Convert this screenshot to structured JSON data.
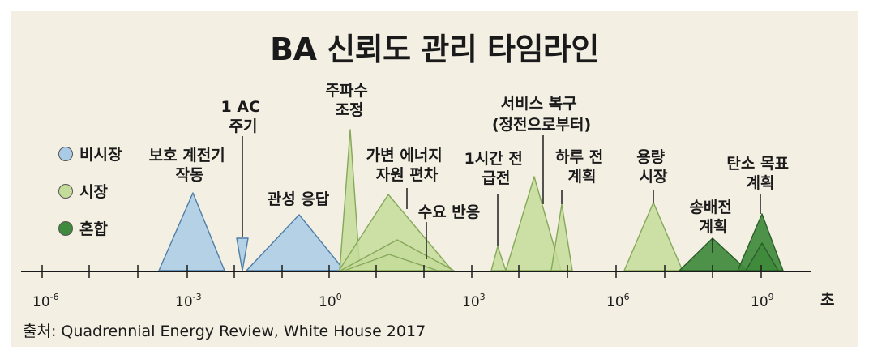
{
  "title": "BA 신뢰도 관리 타임라인",
  "source": "출처: Quadrennial Energy Review, White House 2017",
  "legend": [
    {
      "label": "비시장",
      "color": "#a9cbe6"
    },
    {
      "label": "시장",
      "color": "#c4dc9a"
    },
    {
      "label": "혼합",
      "color": "#3f8a3c"
    }
  ],
  "axis": {
    "unit": "초",
    "major_ticks": [
      {
        "base": "10",
        "exp": "-6"
      },
      {
        "base": "10",
        "exp": "-3"
      },
      {
        "base": "10",
        "exp": "0"
      },
      {
        "base": "10",
        "exp": "3"
      },
      {
        "base": "10",
        "exp": "6"
      },
      {
        "base": "10",
        "exp": "9"
      }
    ]
  },
  "items": [
    {
      "id": "protection-relay",
      "lines": [
        "보호 계전기",
        "작동"
      ],
      "type": "비시장"
    },
    {
      "id": "ac-cycle",
      "lines": [
        "1 AC",
        "주기"
      ],
      "type": "비시장"
    },
    {
      "id": "inertial-response",
      "lines": [
        "관성 응답"
      ],
      "type": "비시장"
    },
    {
      "id": "frequency-regulation",
      "lines": [
        "주파수",
        "조정"
      ],
      "type": "시장"
    },
    {
      "id": "variable-energy-deviation",
      "lines": [
        "가변 에너지",
        "자원 편차"
      ],
      "type": "시장"
    },
    {
      "id": "demand-response",
      "lines": [
        "수요 반응"
      ],
      "type": "시장"
    },
    {
      "id": "hourly-dispatch",
      "lines": [
        "1시간 전",
        "급전"
      ],
      "type": "시장"
    },
    {
      "id": "service-restoration",
      "lines": [
        "서비스 복구",
        "(정전으로부터)"
      ],
      "type": "시장"
    },
    {
      "id": "day-ahead-planning",
      "lines": [
        "하루 전",
        "계획"
      ],
      "type": "시장"
    },
    {
      "id": "capacity-market",
      "lines": [
        "용량",
        "시장"
      ],
      "type": "시장"
    },
    {
      "id": "transmission-planning",
      "lines": [
        "송배전",
        "계획"
      ],
      "type": "혼합"
    },
    {
      "id": "carbon-target-planning",
      "lines": [
        "탄소 목표",
        "계획"
      ],
      "type": "혼합"
    }
  ]
}
